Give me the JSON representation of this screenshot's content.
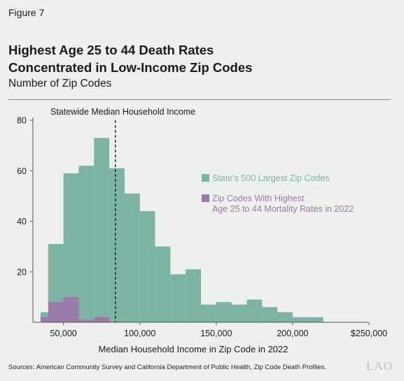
{
  "figure_label": "Figure 7",
  "title_line1": "Highest Age 25 to 44 Death Rates",
  "title_line2": "Concentrated in Low-Income Zip Codes",
  "subtitle": "Number of Zip Codes",
  "footer": "Sources: American Community Survey and California Department of Public Health, Zip Code Death Profiles.",
  "logo": "LAO",
  "chart_data": {
    "type": "bar",
    "xlabel": "Median Household Income in Zip Code in 2022",
    "ylabel": "",
    "xlim": [
      30000,
      250000
    ],
    "ylim": [
      0,
      80
    ],
    "bin_width": 10000,
    "x_ticks": [
      50000,
      100000,
      150000,
      200000,
      250000
    ],
    "x_tick_labels": [
      "50,000",
      "100,000",
      "150,000",
      "200,000",
      "$250,000"
    ],
    "y_ticks": [
      20,
      40,
      60,
      80
    ],
    "y_tick_labels": [
      "20",
      "40",
      "60",
      "80"
    ],
    "grid": false,
    "median_line": {
      "x": 84000,
      "label": "Statewide Median Household Income"
    },
    "legend_placement": "right",
    "colors": {
      "largest": "#7db3a5",
      "highest": "#9a7aa6",
      "highest_text": "#9a7aa6",
      "largest_text": "#7db3a5"
    },
    "series": [
      {
        "name": "State's 500 Largest Zip Codes",
        "bins": [
          {
            "x0": 35000,
            "x1": 40000,
            "value": 4
          },
          {
            "x0": 40000,
            "x1": 50000,
            "value": 31
          },
          {
            "x0": 50000,
            "x1": 60000,
            "value": 59
          },
          {
            "x0": 60000,
            "x1": 70000,
            "value": 62
          },
          {
            "x0": 70000,
            "x1": 80000,
            "value": 73
          },
          {
            "x0": 80000,
            "x1": 90000,
            "value": 61
          },
          {
            "x0": 90000,
            "x1": 100000,
            "value": 51
          },
          {
            "x0": 100000,
            "x1": 110000,
            "value": 44
          },
          {
            "x0": 110000,
            "x1": 120000,
            "value": 30
          },
          {
            "x0": 120000,
            "x1": 130000,
            "value": 19
          },
          {
            "x0": 130000,
            "x1": 140000,
            "value": 21
          },
          {
            "x0": 140000,
            "x1": 150000,
            "value": 7
          },
          {
            "x0": 150000,
            "x1": 160000,
            "value": 8
          },
          {
            "x0": 160000,
            "x1": 170000,
            "value": 7
          },
          {
            "x0": 170000,
            "x1": 180000,
            "value": 9
          },
          {
            "x0": 180000,
            "x1": 190000,
            "value": 6
          },
          {
            "x0": 190000,
            "x1": 200000,
            "value": 4
          },
          {
            "x0": 200000,
            "x1": 210000,
            "value": 2
          },
          {
            "x0": 210000,
            "x1": 220000,
            "value": 2
          }
        ]
      },
      {
        "name": "Zip Codes With Highest Age 25 to 44 Mortality Rates in 2022",
        "bins": [
          {
            "x0": 35000,
            "x1": 40000,
            "value": 2
          },
          {
            "x0": 40000,
            "x1": 50000,
            "value": 8
          },
          {
            "x0": 50000,
            "x1": 60000,
            "value": 10
          },
          {
            "x0": 60000,
            "x1": 70000,
            "value": 1
          },
          {
            "x0": 70000,
            "x1": 80000,
            "value": 2
          }
        ]
      }
    ],
    "legend": [
      {
        "line1": "State's 500 Largest Zip Codes",
        "line2": ""
      },
      {
        "line1": "Zip Codes With Highest",
        "line2": "Age 25 to 44 Mortality Rates in 2022"
      }
    ]
  }
}
